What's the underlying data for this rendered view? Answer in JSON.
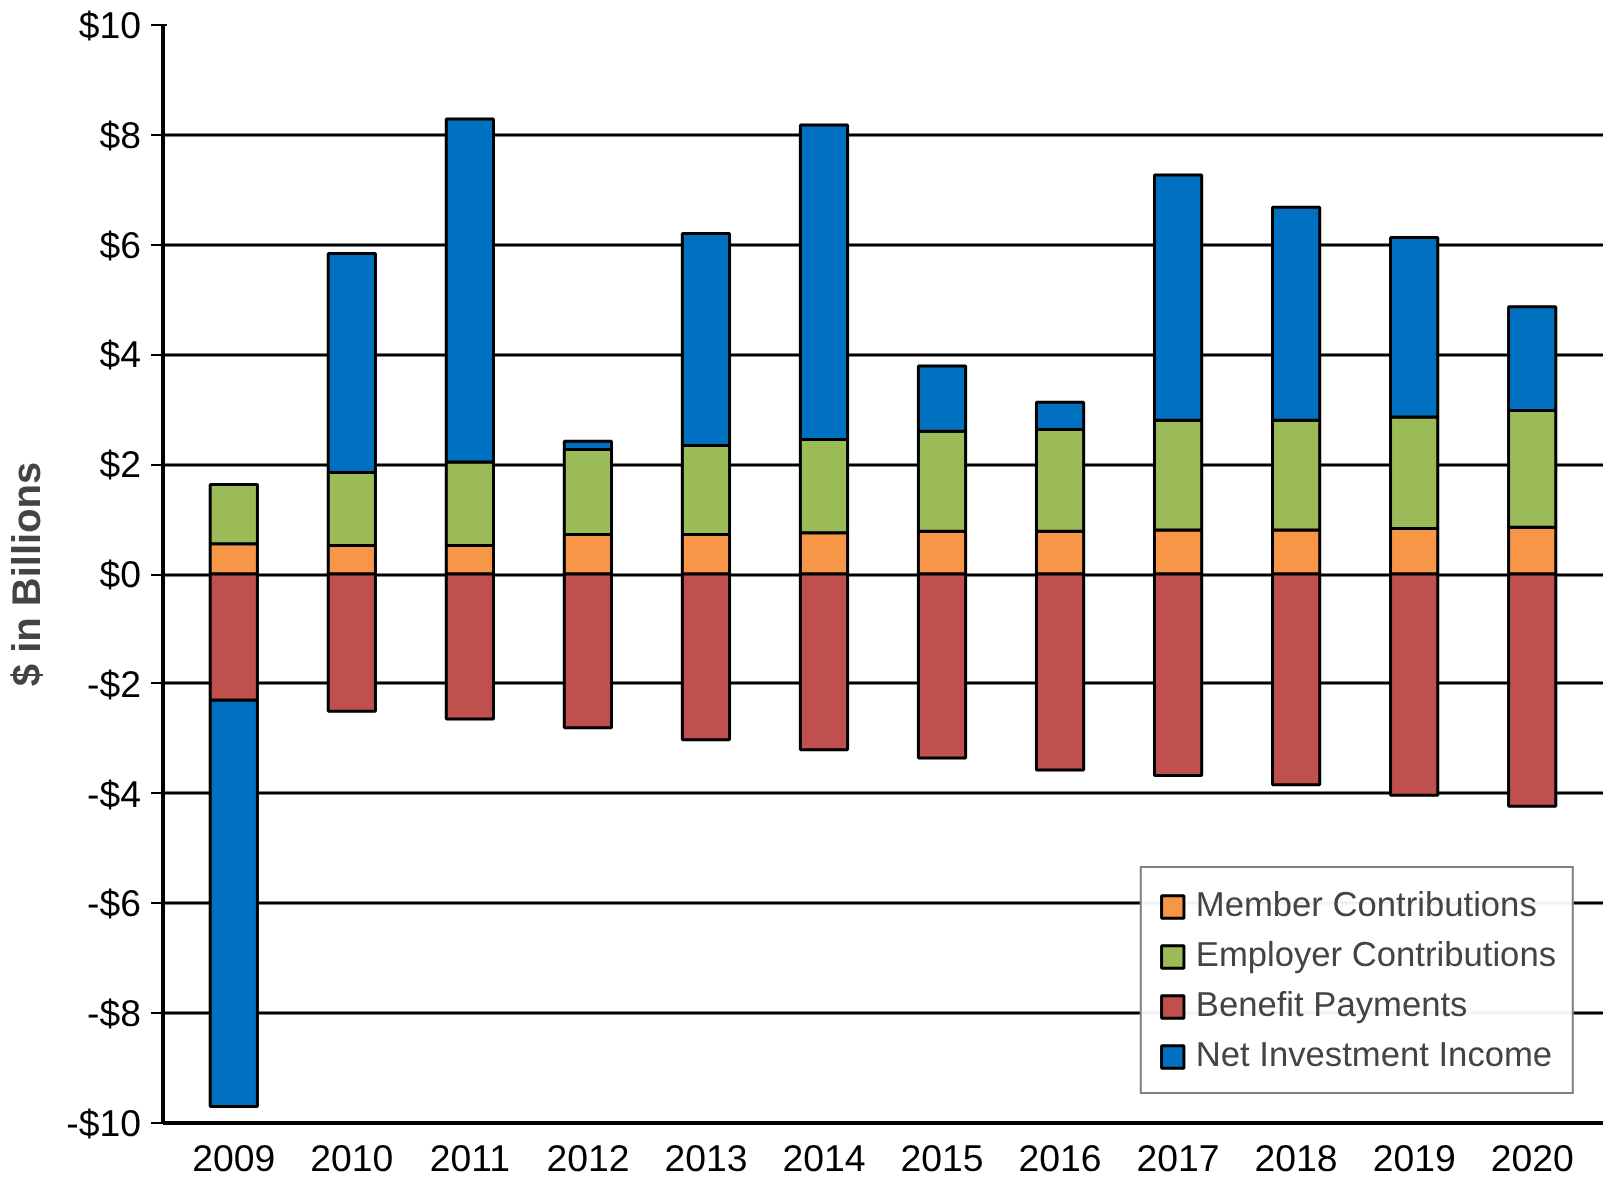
{
  "chart_data": {
    "type": "bar",
    "stacked": true,
    "ylabel": "$ in Billions",
    "categories": [
      "2009",
      "2010",
      "2011",
      "2012",
      "2013",
      "2014",
      "2015",
      "2016",
      "2017",
      "2018",
      "2019",
      "2020"
    ],
    "series": [
      {
        "name": "Member Contributions",
        "color": "#f79646",
        "values": [
          0.55,
          0.52,
          0.52,
          0.72,
          0.72,
          0.75,
          0.78,
          0.78,
          0.8,
          0.8,
          0.83,
          0.85
        ]
      },
      {
        "name": "Employer Contributions",
        "color": "#9bbb59",
        "values": [
          1.08,
          1.33,
          1.52,
          1.55,
          1.62,
          1.7,
          1.82,
          1.85,
          2.0,
          2.0,
          2.03,
          2.13
        ]
      },
      {
        "name": "Benefit Payments",
        "color": "#c0504d",
        "values": [
          -2.3,
          -2.5,
          -2.64,
          -2.8,
          -3.02,
          -3.2,
          -3.35,
          -3.57,
          -3.67,
          -3.84,
          -4.03,
          -4.23
        ]
      },
      {
        "name": "Net Investment Income",
        "color": "#0070c0",
        "values": [
          -7.4,
          3.99,
          6.25,
          0.15,
          3.86,
          5.73,
          1.19,
          0.5,
          4.47,
          3.88,
          3.27,
          1.89
        ]
      }
    ],
    "ylim": [
      -10,
      10
    ],
    "yticks": [
      {
        "value": -10,
        "label": "-$10"
      },
      {
        "value": -8,
        "label": "-$8"
      },
      {
        "value": -6,
        "label": "-$6"
      },
      {
        "value": -4,
        "label": "-$4"
      },
      {
        "value": -2,
        "label": "-$2"
      },
      {
        "value": 0,
        "label": "$0"
      },
      {
        "value": 2,
        "label": "$2"
      },
      {
        "value": 4,
        "label": "$4"
      },
      {
        "value": 6,
        "label": "$6"
      },
      {
        "value": 8,
        "label": "$8"
      },
      {
        "value": 10,
        "label": "$10"
      }
    ],
    "grid": "y",
    "legend": "bottom right"
  }
}
